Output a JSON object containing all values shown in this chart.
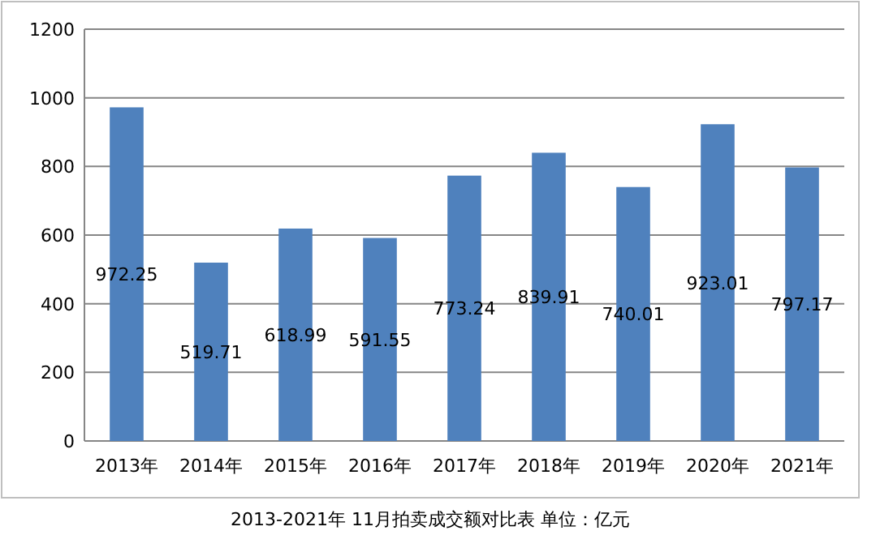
{
  "chart_data": {
    "type": "bar",
    "title": "2013-2021年 11月拍卖成交额对比表    单位：亿元",
    "categories": [
      "2013年",
      "2014年",
      "2015年",
      "2016年",
      "2017年",
      "2018年",
      "2019年",
      "2020年",
      "2021年"
    ],
    "values": [
      972.25,
      519.71,
      618.99,
      591.55,
      773.24,
      839.91,
      740.01,
      923.01,
      797.17
    ],
    "color": "#4f81bd",
    "ylim": [
      0,
      1200
    ],
    "yticks": [
      0,
      200,
      400,
      600,
      800,
      1000,
      1200
    ],
    "grid": "y",
    "data_labels": true
  }
}
